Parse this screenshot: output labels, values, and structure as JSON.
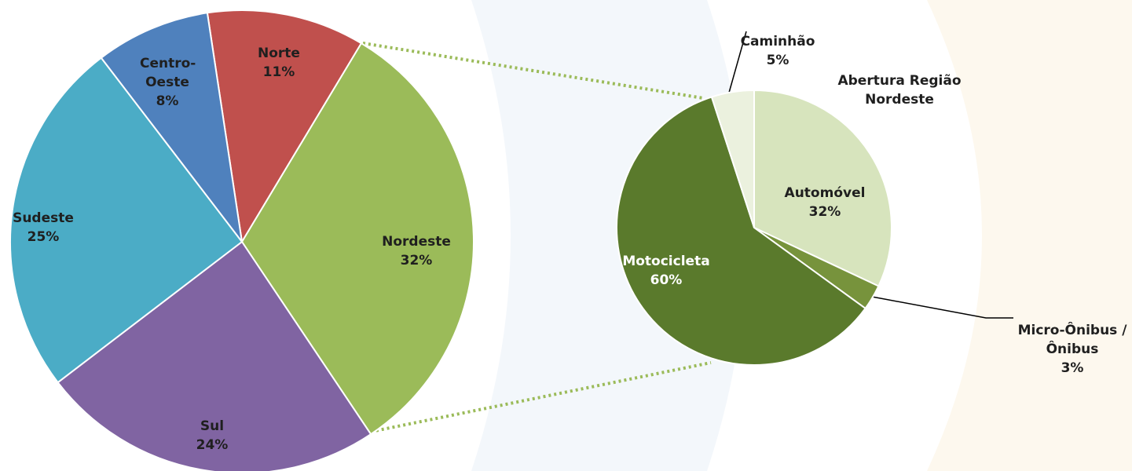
{
  "chart_data": [
    {
      "type": "pie",
      "categories": [
        "Norte",
        "Nordeste",
        "Sul",
        "Sudeste",
        "Centro-Oeste"
      ],
      "values": [
        11,
        32,
        24,
        25,
        8
      ],
      "value_labels": [
        "11%",
        "32%",
        "24%",
        "25%",
        "8%"
      ],
      "colors": [
        "#c0504d",
        "#9bbb59",
        "#8064a2",
        "#4bacc6",
        "#4f81bd"
      ]
    },
    {
      "type": "pie",
      "title": "Abertura Região Nordeste",
      "categories": [
        "Automóvel",
        "Micro-Ônibus / Ônibus",
        "Motocicleta",
        "Caminhão"
      ],
      "values": [
        32,
        3,
        60,
        5
      ],
      "value_labels": [
        "32%",
        "3%",
        "60%",
        "5%"
      ],
      "colors": [
        "#d7e4bd",
        "#77933c",
        "#5a7a2c",
        "#ebf1de"
      ]
    }
  ]
}
